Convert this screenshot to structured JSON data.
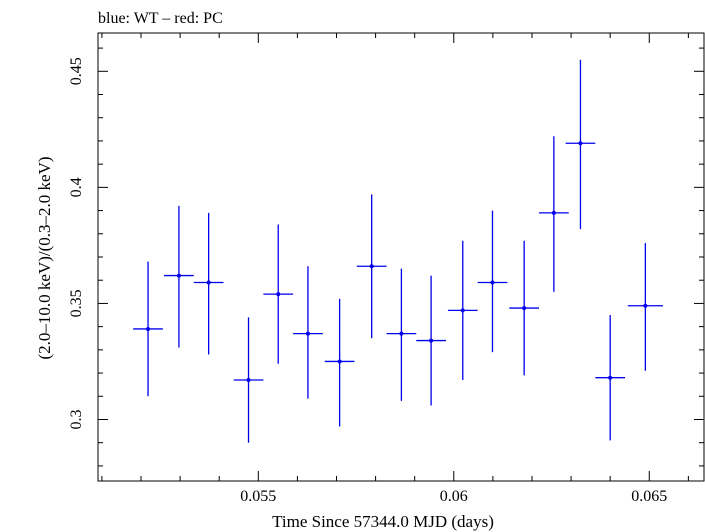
{
  "chart_data": {
    "type": "scatter",
    "title": "blue: WT – red: PC",
    "xlabel": "Time Since 57344.0 MJD (days)",
    "ylabel": "(2.0–10.0 keV)/(0.3–2.0 keV)",
    "xlim": [
      0.0509,
      0.0664
    ],
    "ylim": [
      0.2735,
      0.4665
    ],
    "x_ticks": [
      0.055,
      0.06,
      0.065
    ],
    "x_tick_labels": [
      "0.055",
      "0.06",
      "0.065"
    ],
    "y_ticks": [
      0.3,
      0.35,
      0.4,
      0.45
    ],
    "y_tick_labels": [
      "0.3",
      "0.35",
      "0.4",
      "0.45"
    ],
    "grid": false,
    "series": [
      {
        "color": "#0000ee",
        "points": [
          {
            "x": 0.05218,
            "y": 0.339,
            "xerr": 0.00038,
            "ylo": 0.31,
            "yhi": 0.368
          },
          {
            "x": 0.05297,
            "y": 0.362,
            "xerr": 0.00038,
            "ylo": 0.331,
            "yhi": 0.392
          },
          {
            "x": 0.05373,
            "y": 0.359,
            "xerr": 0.00038,
            "ylo": 0.328,
            "yhi": 0.389
          },
          {
            "x": 0.05475,
            "y": 0.317,
            "xerr": 0.00038,
            "ylo": 0.29,
            "yhi": 0.344
          },
          {
            "x": 0.05551,
            "y": 0.354,
            "xerr": 0.00038,
            "ylo": 0.324,
            "yhi": 0.384
          },
          {
            "x": 0.05627,
            "y": 0.337,
            "xerr": 0.00038,
            "ylo": 0.309,
            "yhi": 0.366
          },
          {
            "x": 0.05708,
            "y": 0.325,
            "xerr": 0.00038,
            "ylo": 0.297,
            "yhi": 0.352
          },
          {
            "x": 0.0579,
            "y": 0.366,
            "xerr": 0.00038,
            "ylo": 0.335,
            "yhi": 0.397
          },
          {
            "x": 0.05866,
            "y": 0.337,
            "xerr": 0.00038,
            "ylo": 0.308,
            "yhi": 0.365
          },
          {
            "x": 0.05942,
            "y": 0.334,
            "xerr": 0.00038,
            "ylo": 0.306,
            "yhi": 0.362
          },
          {
            "x": 0.06023,
            "y": 0.347,
            "xerr": 0.00038,
            "ylo": 0.317,
            "yhi": 0.377
          },
          {
            "x": 0.06099,
            "y": 0.359,
            "xerr": 0.00038,
            "ylo": 0.329,
            "yhi": 0.39
          },
          {
            "x": 0.0618,
            "y": 0.348,
            "xerr": 0.00038,
            "ylo": 0.319,
            "yhi": 0.377
          },
          {
            "x": 0.06256,
            "y": 0.389,
            "xerr": 0.00038,
            "ylo": 0.355,
            "yhi": 0.422
          },
          {
            "x": 0.06324,
            "y": 0.419,
            "xerr": 0.00038,
            "ylo": 0.382,
            "yhi": 0.455
          },
          {
            "x": 0.064,
            "y": 0.318,
            "xerr": 0.00038,
            "ylo": 0.291,
            "yhi": 0.345
          },
          {
            "x": 0.0649,
            "y": 0.349,
            "xerr": 0.00045,
            "ylo": 0.321,
            "yhi": 0.376
          }
        ]
      }
    ]
  }
}
